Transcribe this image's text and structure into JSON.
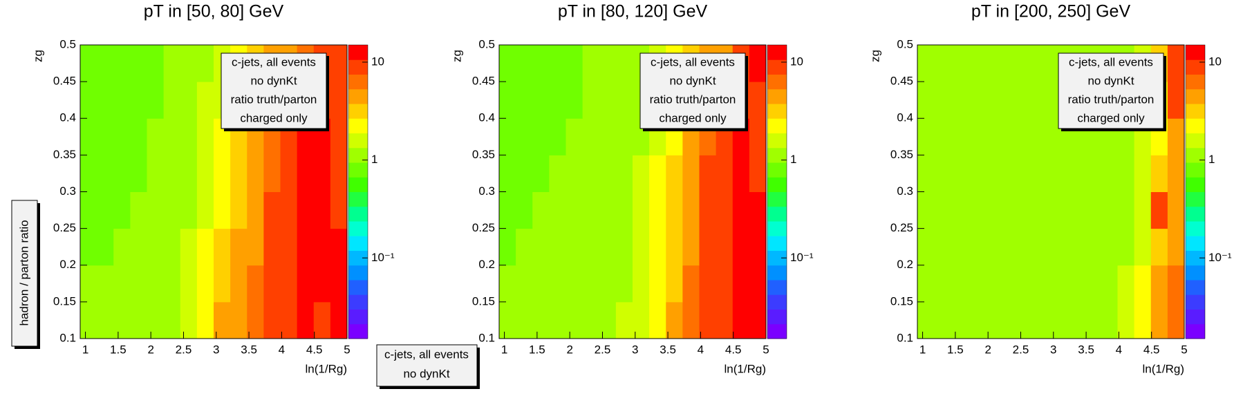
{
  "chart_data": [
    {
      "type": "heatmap",
      "title": "pT in [50, 80] GeV",
      "xlabel": "ln(1/Rg)",
      "ylabel": "zg",
      "xlim": [
        0.92,
        5
      ],
      "ylim": [
        0.1,
        0.5
      ],
      "xticks": [
        1,
        1.5,
        2,
        2.5,
        3,
        3.5,
        4,
        4.5,
        5
      ],
      "yticks": [
        0.1,
        0.15,
        0.2,
        0.25,
        0.3,
        0.35,
        0.4,
        0.45,
        0.5
      ],
      "xbins": [
        0.92,
        1.175,
        1.43,
        1.685,
        1.94,
        2.195,
        2.45,
        2.705,
        2.96,
        3.215,
        3.47,
        3.725,
        3.98,
        4.235,
        4.49,
        4.745,
        5
      ],
      "ybins": [
        0.1,
        0.15,
        0.2,
        0.25,
        0.3,
        0.35,
        0.4,
        0.45,
        0.5
      ],
      "zlim": [
        0.015,
        15
      ],
      "zlog": true,
      "zticks": [
        {
          "value": 10,
          "label": "10"
        },
        {
          "value": 1,
          "label": "1"
        },
        {
          "value": 0.1,
          "label": "10⁻¹"
        }
      ],
      "palette": [
        "#7a00ff",
        "#5a1cff",
        "#3c3cff",
        "#2060ff",
        "#0090ff",
        "#00b8ff",
        "#00e6ff",
        "#00ffd0",
        "#00ff90",
        "#20ff40",
        "#40ff00",
        "#70ff00",
        "#a0ff00",
        "#d0ff00",
        "#ffff00",
        "#ffd000",
        "#ffa000",
        "#ff7000",
        "#ff4000",
        "#ff0000"
      ],
      "annotations": [
        "c-jets, all events",
        "no dynKt",
        "ratio truth/parton",
        "charged only"
      ],
      "z": [
        [
          1,
          1,
          1,
          1,
          1.1,
          1.2,
          1.5,
          2.5,
          4,
          5,
          6,
          8,
          10,
          12,
          10,
          12
        ],
        [
          1,
          1,
          1,
          1,
          1.1,
          1.2,
          1.5,
          2.2,
          3.5,
          4.5,
          6,
          8,
          10,
          12,
          12,
          15
        ],
        [
          0.9,
          0.9,
          1,
          1,
          1,
          1.1,
          1.4,
          2,
          3,
          4,
          5,
          8,
          10,
          12,
          12,
          12
        ],
        [
          0.9,
          0.9,
          0.9,
          1,
          1,
          1.1,
          1.3,
          1.8,
          2.5,
          3.5,
          5,
          8,
          10,
          12,
          12,
          10
        ],
        [
          0.9,
          0.9,
          0.9,
          0.9,
          1,
          1,
          1.2,
          1.6,
          2.2,
          3,
          4.5,
          7,
          10,
          12,
          12,
          10
        ],
        [
          0.9,
          0.9,
          0.9,
          0.9,
          1,
          1,
          1.1,
          1.5,
          2,
          2.8,
          4,
          6,
          9,
          12,
          12,
          8
        ],
        [
          0.9,
          0.9,
          0.9,
          0.9,
          0.9,
          1,
          1.1,
          1.4,
          1.8,
          2.4,
          3.5,
          5,
          6,
          8,
          10,
          8
        ],
        [
          0.9,
          0.9,
          0.9,
          0.9,
          0.9,
          1,
          1,
          1.3,
          1.6,
          2.2,
          3,
          4,
          5,
          6,
          8,
          10
        ]
      ]
    },
    {
      "type": "heatmap",
      "title": "pT in [80, 120] GeV",
      "xlabel": "ln(1/Rg)",
      "ylabel": "zg",
      "xlim": [
        0.92,
        5
      ],
      "ylim": [
        0.1,
        0.5
      ],
      "xticks": [
        1,
        1.5,
        2,
        2.5,
        3,
        3.5,
        4,
        4.5,
        5
      ],
      "yticks": [
        0.1,
        0.15,
        0.2,
        0.25,
        0.3,
        0.35,
        0.4,
        0.45,
        0.5
      ],
      "xbins": [
        0.92,
        1.175,
        1.43,
        1.685,
        1.94,
        2.195,
        2.45,
        2.705,
        2.96,
        3.215,
        3.47,
        3.725,
        3.98,
        4.235,
        4.49,
        4.745,
        5
      ],
      "ybins": [
        0.1,
        0.15,
        0.2,
        0.25,
        0.3,
        0.35,
        0.4,
        0.45,
        0.5
      ],
      "zlim": [
        0.015,
        15
      ],
      "zlog": true,
      "zticks": [
        {
          "value": 10,
          "label": "10"
        },
        {
          "value": 1,
          "label": "1"
        },
        {
          "value": 0.1,
          "label": "10⁻¹"
        }
      ],
      "palette": [
        "#7a00ff",
        "#5a1cff",
        "#3c3cff",
        "#2060ff",
        "#0090ff",
        "#00b8ff",
        "#00e6ff",
        "#00ffd0",
        "#00ff90",
        "#20ff40",
        "#40ff00",
        "#70ff00",
        "#a0ff00",
        "#d0ff00",
        "#ffff00",
        "#ffd000",
        "#ffa000",
        "#ff7000",
        "#ff4000",
        "#ff0000"
      ],
      "annotations": [
        "c-jets, all events",
        "no dynKt",
        "ratio truth/parton",
        "charged only"
      ],
      "z": [
        [
          1,
          1,
          1,
          1,
          1,
          1.1,
          1.2,
          1.4,
          1.8,
          2.5,
          4,
          6,
          9,
          10,
          12,
          12
        ],
        [
          1,
          1,
          1,
          1,
          1,
          1.1,
          1.2,
          1.3,
          1.7,
          2.3,
          3.5,
          6,
          9,
          10,
          12,
          12
        ],
        [
          0.9,
          1,
          1,
          1,
          1,
          1,
          1.1,
          1.3,
          1.6,
          2.2,
          3.5,
          5,
          8,
          10,
          12,
          12
        ],
        [
          0.9,
          0.9,
          1,
          1,
          1,
          1,
          1.1,
          1.2,
          1.5,
          2,
          3,
          5,
          8,
          10,
          12,
          12
        ],
        [
          0.9,
          0.9,
          0.9,
          1,
          1,
          1,
          1.1,
          1.2,
          1.4,
          1.9,
          2.8,
          4.5,
          8,
          10,
          12,
          10
        ],
        [
          0.9,
          0.9,
          0.9,
          0.9,
          1,
          1,
          1,
          1.1,
          1.3,
          1.8,
          2.5,
          4,
          7,
          10,
          12,
          10
        ],
        [
          0.9,
          0.9,
          0.9,
          0.9,
          0.9,
          1,
          1,
          1.1,
          1.3,
          1.6,
          2.2,
          3.5,
          5,
          7,
          10,
          10
        ],
        [
          0.9,
          0.9,
          0.9,
          0.9,
          0.9,
          1,
          1,
          1.1,
          1.2,
          1.5,
          2,
          3,
          4,
          5,
          8,
          12
        ]
      ]
    },
    {
      "type": "heatmap",
      "title": "pT in [200, 250] GeV",
      "xlabel": "ln(1/Rg)",
      "ylabel": "zg",
      "xlim": [
        0.92,
        5
      ],
      "ylim": [
        0.1,
        0.5
      ],
      "xticks": [
        1,
        1.5,
        2,
        2.5,
        3,
        3.5,
        4,
        4.5,
        5
      ],
      "yticks": [
        0.1,
        0.15,
        0.2,
        0.25,
        0.3,
        0.35,
        0.4,
        0.45,
        0.5
      ],
      "xbins": [
        0.92,
        1.175,
        1.43,
        1.685,
        1.94,
        2.195,
        2.45,
        2.705,
        2.96,
        3.215,
        3.47,
        3.725,
        3.98,
        4.235,
        4.49,
        4.745,
        5
      ],
      "ybins": [
        0.1,
        0.15,
        0.2,
        0.25,
        0.3,
        0.35,
        0.4,
        0.45,
        0.5
      ],
      "zlim": [
        0.015,
        15
      ],
      "zlog": true,
      "zticks": [
        {
          "value": 10,
          "label": "10"
        },
        {
          "value": 1,
          "label": "1"
        },
        {
          "value": 0.1,
          "label": "10⁻¹"
        }
      ],
      "palette": [
        "#7a00ff",
        "#5a1cff",
        "#3c3cff",
        "#2060ff",
        "#0090ff",
        "#00b8ff",
        "#00e6ff",
        "#00ffd0",
        "#00ff90",
        "#20ff40",
        "#40ff00",
        "#70ff00",
        "#a0ff00",
        "#d0ff00",
        "#ffff00",
        "#ffd000",
        "#ffa000",
        "#ff7000",
        "#ff4000",
        "#ff0000"
      ],
      "annotations": [
        "c-jets, all events",
        "no dynKt",
        "ratio truth/parton",
        "charged only"
      ],
      "z": [
        [
          1,
          1,
          1,
          1,
          1,
          1,
          1,
          1,
          1,
          1.1,
          1.1,
          1.2,
          1.5,
          2.5,
          5,
          6
        ],
        [
          1,
          1,
          1,
          1,
          1,
          1,
          1,
          1,
          1,
          1,
          1.1,
          1.2,
          1.4,
          2,
          4,
          6
        ],
        [
          1,
          1,
          1,
          1,
          1,
          1,
          1,
          1,
          1,
          1,
          1.1,
          1.1,
          1.3,
          1.8,
          3,
          5
        ],
        [
          1,
          1,
          1,
          1,
          1,
          1,
          1,
          1,
          1,
          1,
          1,
          1.1,
          1.3,
          1.8,
          8,
          4
        ],
        [
          1,
          1,
          1,
          1,
          1,
          1,
          1,
          1,
          1,
          1,
          1,
          1.1,
          1.2,
          1.6,
          3,
          4
        ],
        [
          1,
          1,
          1,
          1,
          1,
          1,
          1,
          1,
          1,
          1,
          1,
          1.1,
          1.2,
          1.5,
          2.5,
          5
        ],
        [
          1,
          1,
          1,
          1,
          1,
          1,
          1,
          1,
          1,
          1,
          1,
          1.1,
          1.2,
          1.5,
          2.5,
          8
        ],
        [
          1,
          1,
          1,
          1,
          1,
          1,
          1,
          1,
          1,
          1,
          1,
          1.1,
          1.2,
          1.6,
          3,
          10
        ]
      ]
    }
  ],
  "side_box": "hadron / parton ratio",
  "bottom_box": [
    "c-jets, all events",
    "no dynKt"
  ]
}
